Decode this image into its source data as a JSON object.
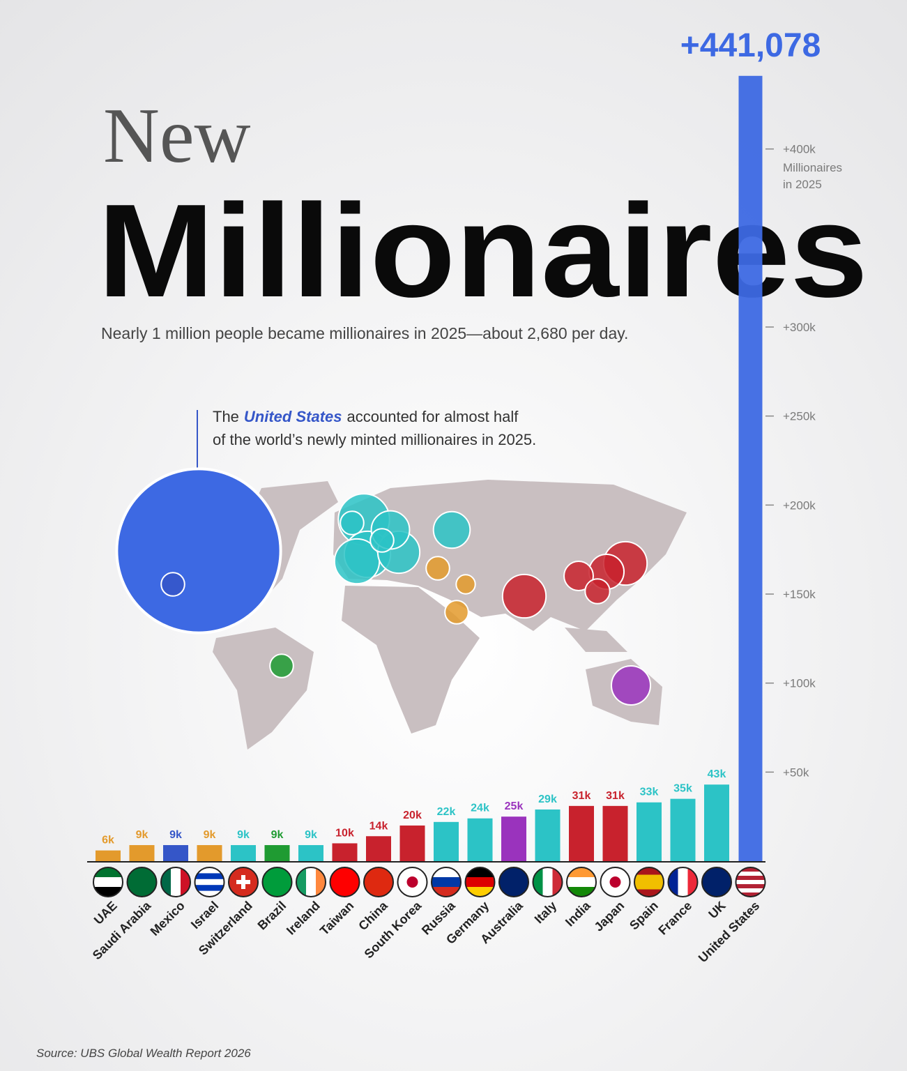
{
  "chart_data": {
    "type": "bar",
    "title": [
      "New",
      "Millionaires"
    ],
    "subtitle": "Nearly 1 million people became millionaires in 2025—about 2,680 per day.",
    "annotation": [
      [
        "The",
        "United States",
        "accounted for almost half"
      ],
      [
        "of the world’s newly minted millionaires in 2025."
      ]
    ],
    "y_axis_note": [
      "Millionaires",
      "in 2025"
    ],
    "source": "Source: UBS Global Wealth Report 2026",
    "categories": [
      "UAE",
      "Saudi Arabia",
      "Mexico",
      "Israel",
      "Switzerland",
      "Brazil",
      "Ireland",
      "Taiwan",
      "China",
      "South Korea",
      "Russia",
      "Germany",
      "Australia",
      "Italy",
      "India",
      "Japan",
      "Spain",
      "France",
      "UK",
      "United States"
    ],
    "values": [
      6000,
      9000,
      9000,
      9000,
      9000,
      9000,
      9000,
      10000,
      14000,
      20000,
      22000,
      24000,
      25000,
      29000,
      31000,
      31000,
      33000,
      35000,
      43000,
      441078
    ],
    "value_labels": [
      "6k",
      "9k",
      "9k",
      "9k",
      "9k",
      "9k",
      "9k",
      "10k",
      "14k",
      "20k",
      "22k",
      "24k",
      "25k",
      "29k",
      "31k",
      "31k",
      "33k",
      "35k",
      "43k",
      "+441,078"
    ],
    "colors": [
      "#e39a2c",
      "#e39a2c",
      "#3556c8",
      "#e39a2c",
      "#2cc3c6",
      "#1f9b32",
      "#2cc3c6",
      "#c8222d",
      "#c8222d",
      "#c8222d",
      "#2cc3c6",
      "#2cc3c6",
      "#9a33bd",
      "#2cc3c6",
      "#c8222d",
      "#c8222d",
      "#2cc3c6",
      "#2cc3c6",
      "#2cc3c6",
      "#3d69e3"
    ],
    "ylim": [
      0,
      450000
    ],
    "yticks": [
      {
        "value": 50000,
        "label": "+50k"
      },
      {
        "value": 100000,
        "label": "+100k"
      },
      {
        "value": 150000,
        "label": "+150k"
      },
      {
        "value": 200000,
        "label": "+200k"
      },
      {
        "value": 250000,
        "label": "+250k"
      },
      {
        "value": 300000,
        "label": "+300k"
      },
      {
        "value": 400000,
        "label": "+400k"
      }
    ]
  }
}
